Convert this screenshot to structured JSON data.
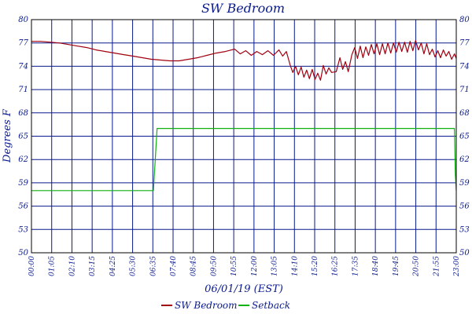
{
  "chart_data": {
    "type": "line",
    "title": "SW Bedroom",
    "xlabel": "06/01/19 (EST)",
    "ylabel": "Degrees F",
    "x_tick_labels": [
      "00:00",
      "01:05",
      "02:10",
      "03:15",
      "04:25",
      "05:30",
      "06:35",
      "07:40",
      "08:45",
      "09:50",
      "10:55",
      "12:00",
      "13:05",
      "14:10",
      "15:20",
      "16:25",
      "17:35",
      "18:40",
      "19:45",
      "20:50",
      "21:55",
      "23:00"
    ],
    "y_tick_labels": [
      "50",
      "53",
      "56",
      "59",
      "62",
      "65",
      "68",
      "71",
      "74",
      "77",
      "80"
    ],
    "ylim": [
      50,
      80
    ],
    "x_range_hours": [
      0,
      23
    ],
    "grid": true,
    "legend_position": "bottom-center",
    "series": [
      {
        "name": "SW Bedroom",
        "color": "#a00010",
        "points": [
          [
            0,
            77.2
          ],
          [
            0.5,
            77.2
          ],
          [
            1,
            77.1
          ],
          [
            1.5,
            77.0
          ],
          [
            2,
            76.8
          ],
          [
            2.5,
            76.6
          ],
          [
            3,
            76.4
          ],
          [
            3.5,
            76.1
          ],
          [
            4,
            75.9
          ],
          [
            4.5,
            75.7
          ],
          [
            5,
            75.5
          ],
          [
            5.5,
            75.3
          ],
          [
            6,
            75.1
          ],
          [
            6.5,
            74.9
          ],
          [
            7,
            74.8
          ],
          [
            7.5,
            74.7
          ],
          [
            8,
            74.7
          ],
          [
            8.5,
            74.9
          ],
          [
            9,
            75.1
          ],
          [
            9.5,
            75.4
          ],
          [
            10,
            75.7
          ],
          [
            10.5,
            75.9
          ],
          [
            11,
            76.2
          ],
          [
            11.3,
            75.6
          ],
          [
            11.6,
            76.0
          ],
          [
            11.9,
            75.4
          ],
          [
            12.2,
            75.9
          ],
          [
            12.5,
            75.5
          ],
          [
            12.8,
            76.0
          ],
          [
            13.1,
            75.4
          ],
          [
            13.4,
            76.1
          ],
          [
            13.6,
            75.3
          ],
          [
            13.8,
            75.9
          ],
          [
            14.0,
            74.2
          ],
          [
            14.15,
            73.2
          ],
          [
            14.3,
            74.0
          ],
          [
            14.45,
            72.9
          ],
          [
            14.6,
            73.9
          ],
          [
            14.75,
            72.6
          ],
          [
            14.9,
            73.5
          ],
          [
            15.05,
            72.4
          ],
          [
            15.2,
            73.6
          ],
          [
            15.35,
            72.3
          ],
          [
            15.5,
            73.1
          ],
          [
            15.65,
            72.2
          ],
          [
            15.8,
            74.1
          ],
          [
            15.95,
            73.0
          ],
          [
            16.1,
            73.8
          ],
          [
            16.25,
            73.2
          ],
          [
            16.5,
            73.3
          ],
          [
            16.7,
            75.1
          ],
          [
            16.85,
            73.6
          ],
          [
            17.0,
            74.6
          ],
          [
            17.15,
            73.3
          ],
          [
            17.35,
            75.5
          ],
          [
            17.5,
            76.4
          ],
          [
            17.65,
            75.0
          ],
          [
            17.8,
            76.6
          ],
          [
            17.95,
            75.1
          ],
          [
            18.1,
            76.5
          ],
          [
            18.25,
            75.4
          ],
          [
            18.4,
            76.8
          ],
          [
            18.55,
            75.6
          ],
          [
            18.7,
            76.9
          ],
          [
            18.85,
            75.5
          ],
          [
            19.0,
            76.9
          ],
          [
            19.15,
            75.6
          ],
          [
            19.3,
            77.0
          ],
          [
            19.45,
            75.7
          ],
          [
            19.6,
            77.0
          ],
          [
            19.75,
            75.8
          ],
          [
            19.9,
            77.1
          ],
          [
            20.05,
            75.9
          ],
          [
            20.2,
            77.1
          ],
          [
            20.35,
            75.8
          ],
          [
            20.5,
            77.2
          ],
          [
            20.65,
            76.0
          ],
          [
            20.8,
            77.3
          ],
          [
            20.95,
            76.1
          ],
          [
            21.1,
            77.0
          ],
          [
            21.25,
            75.6
          ],
          [
            21.4,
            76.9
          ],
          [
            21.55,
            75.5
          ],
          [
            21.7,
            76.2
          ],
          [
            21.85,
            75.2
          ],
          [
            22.0,
            76.0
          ],
          [
            22.15,
            75.1
          ],
          [
            22.3,
            76.1
          ],
          [
            22.45,
            75.3
          ],
          [
            22.6,
            75.9
          ],
          [
            22.75,
            74.9
          ],
          [
            22.9,
            75.6
          ],
          [
            23.0,
            75.0
          ]
        ]
      },
      {
        "name": "Setback",
        "color": "#10b010",
        "points": [
          [
            0,
            58
          ],
          [
            6.6,
            58
          ],
          [
            6.8,
            66
          ],
          [
            22.9,
            66
          ],
          [
            22.95,
            60.2
          ],
          [
            23.0,
            58
          ]
        ]
      }
    ]
  }
}
